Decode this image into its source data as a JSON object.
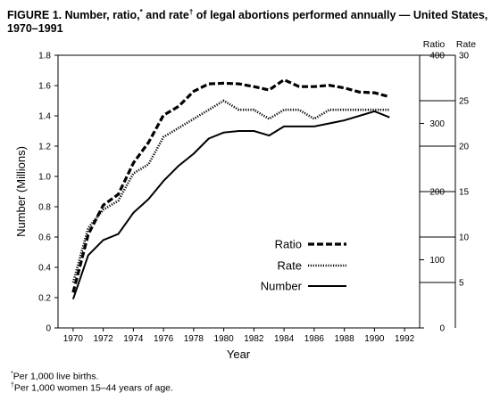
{
  "chart_data": {
    "type": "line",
    "title": {
      "part1": "FIGURE 1. Number, ratio,",
      "star": "*",
      "part2": " and rate",
      "dagger": "†",
      "part3": " of legal abortions performed annually — United States, 1970–1991"
    },
    "xlabel": "Year",
    "ylabel": "Number (Millions)",
    "ratio_axis_label": "Ratio",
    "rate_axis_label": "Rate",
    "xlim": [
      1969,
      1993
    ],
    "x_ticks": [
      1970,
      1972,
      1974,
      1976,
      1978,
      1980,
      1982,
      1984,
      1986,
      1988,
      1990,
      1992
    ],
    "ylim": [
      0,
      1.8
    ],
    "y_ticks": [
      "0",
      "0.2",
      "0.4",
      "0.6",
      "0.8",
      "1.0",
      "1.2",
      "1.4",
      "1.6",
      "1.8"
    ],
    "ratio_ticks": [
      "0",
      "100",
      "200",
      "300",
      "400"
    ],
    "ratio_lim": [
      0,
      400
    ],
    "rate_ticks": [
      "5",
      "10",
      "15",
      "20",
      "25",
      "30"
    ],
    "rate_lim": [
      0,
      30
    ],
    "grid": false,
    "legend_position": "lower-center",
    "x": [
      1970,
      1971,
      1972,
      1973,
      1974,
      1975,
      1976,
      1977,
      1978,
      1979,
      1980,
      1981,
      1982,
      1983,
      1984,
      1985,
      1986,
      1987,
      1988,
      1989,
      1990,
      1991
    ],
    "series": [
      {
        "name": "Ratio",
        "axis": "ratio",
        "style": "dashed",
        "values": [
          52,
          137,
          180,
          196,
          242,
          272,
          312,
          325,
          347,
          358,
          359,
          358,
          354,
          349,
          364,
          354,
          354,
          356,
          352,
          346,
          345,
          339
        ]
      },
      {
        "name": "Rate",
        "axis": "rate",
        "style": "dotted",
        "values": [
          5,
          11,
          13,
          14,
          17,
          18,
          21,
          22,
          23,
          24,
          25,
          24,
          24,
          23,
          24,
          24,
          23,
          24,
          24,
          24,
          24,
          24
        ]
      },
      {
        "name": "Number",
        "axis": "number",
        "style": "solid",
        "values": [
          0.19,
          0.48,
          0.58,
          0.62,
          0.76,
          0.85,
          0.97,
          1.07,
          1.15,
          1.25,
          1.29,
          1.3,
          1.3,
          1.27,
          1.33,
          1.33,
          1.33,
          1.35,
          1.37,
          1.4,
          1.43,
          1.39
        ]
      }
    ]
  },
  "footnotes": [
    {
      "mark": "*",
      "text": "Per 1,000 live births."
    },
    {
      "mark": "†",
      "text": "Per 1,000 women 15–44 years of age."
    }
  ]
}
